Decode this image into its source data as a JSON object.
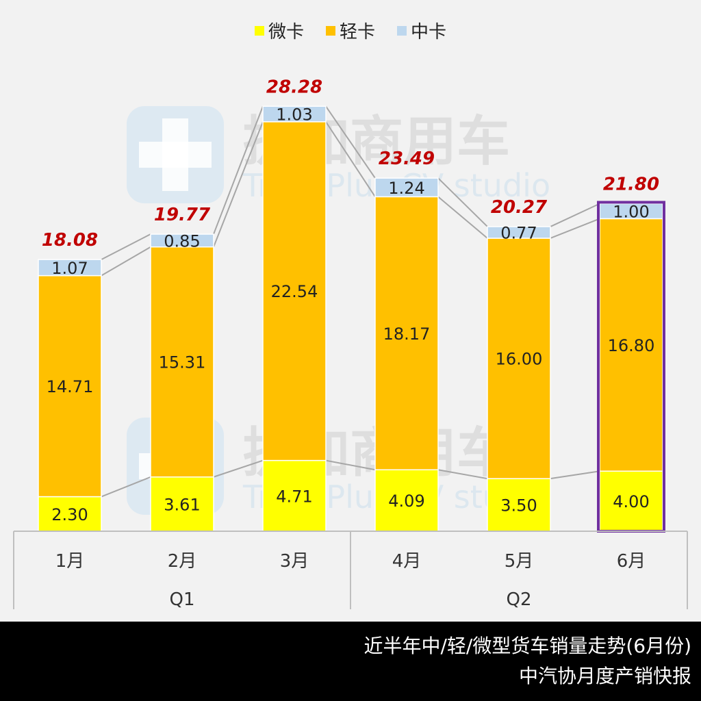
{
  "chart_data": {
    "type": "bar",
    "stacked": true,
    "categories": [
      "1月",
      "2月",
      "3月",
      "4月",
      "5月",
      "6月"
    ],
    "quarters": [
      {
        "label": "Q1",
        "months": [
          "1月",
          "2月",
          "3月"
        ]
      },
      {
        "label": "Q2",
        "months": [
          "4月",
          "5月",
          "6月"
        ]
      }
    ],
    "series": [
      {
        "name": "微卡",
        "color": "#ffff00",
        "values": [
          2.3,
          3.61,
          4.71,
          4.09,
          3.5,
          4.0
        ]
      },
      {
        "name": "轻卡",
        "color": "#ffc000",
        "values": [
          14.71,
          15.31,
          22.54,
          18.17,
          16.0,
          16.8
        ]
      },
      {
        "name": "中卡",
        "color": "#bdd7ee",
        "values": [
          1.07,
          0.85,
          1.03,
          1.24,
          0.77,
          1.0
        ]
      }
    ],
    "totals": [
      18.08,
      19.77,
      28.28,
      23.49,
      20.27,
      21.8
    ],
    "value_labels": [
      [
        "2.30",
        "3.61",
        "4.71",
        "4.09",
        "3.50",
        "4.00"
      ],
      [
        "14.71",
        "15.31",
        "22.54",
        "18.17",
        "16.00",
        "16.80"
      ],
      [
        "1.07",
        "0.85",
        "1.03",
        "1.24",
        "0.77",
        "1.00"
      ]
    ],
    "total_labels": [
      "18.08",
      "19.77",
      "28.28",
      "23.49",
      "20.27",
      "21.80"
    ],
    "highlight_category": "6月",
    "highlight_color": "#7030a0",
    "total_label_color": "#c00000",
    "ylim": [
      0,
      30
    ],
    "legend_position": "top-center",
    "grid": false
  },
  "watermark": {
    "text_cn": "提加商用车",
    "text_en": "TruckPlus CV studio"
  },
  "footer": {
    "line1": "近半年中/轻/微型货车销量走势(6月份)",
    "line2": "中汽协月度产销快报"
  }
}
